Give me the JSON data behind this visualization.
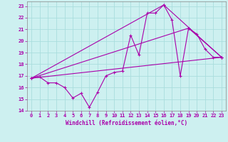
{
  "xlabel": "Windchill (Refroidissement éolien,°C)",
  "background_color": "#cdf0f0",
  "grid_color": "#aadddd",
  "line_color": "#aa00aa",
  "xlim": [
    -0.5,
    23.5
  ],
  "ylim": [
    14,
    23.4
  ],
  "xticks": [
    0,
    1,
    2,
    3,
    4,
    5,
    6,
    7,
    8,
    9,
    10,
    11,
    12,
    13,
    14,
    15,
    16,
    17,
    18,
    19,
    20,
    21,
    22,
    23
  ],
  "yticks": [
    14,
    15,
    16,
    17,
    18,
    19,
    20,
    21,
    22,
    23
  ],
  "series1_x": [
    0,
    1,
    2,
    3,
    4,
    5,
    6,
    7,
    8,
    9,
    10,
    11,
    12,
    13,
    14,
    15,
    16,
    17,
    18,
    19,
    20,
    21,
    22,
    23
  ],
  "series1_y": [
    16.8,
    16.9,
    16.4,
    16.4,
    16.0,
    15.1,
    15.5,
    14.3,
    15.6,
    17.0,
    17.3,
    17.4,
    20.5,
    18.8,
    22.4,
    22.4,
    23.1,
    21.8,
    17.0,
    21.1,
    20.6,
    19.3,
    18.6,
    18.6
  ],
  "series2_x": [
    0,
    16,
    23
  ],
  "series2_y": [
    16.8,
    23.1,
    18.6
  ],
  "series3_x": [
    0,
    23
  ],
  "series3_y": [
    16.8,
    18.6
  ],
  "series4_x": [
    0,
    19,
    23
  ],
  "series4_y": [
    16.8,
    21.1,
    18.6
  ]
}
